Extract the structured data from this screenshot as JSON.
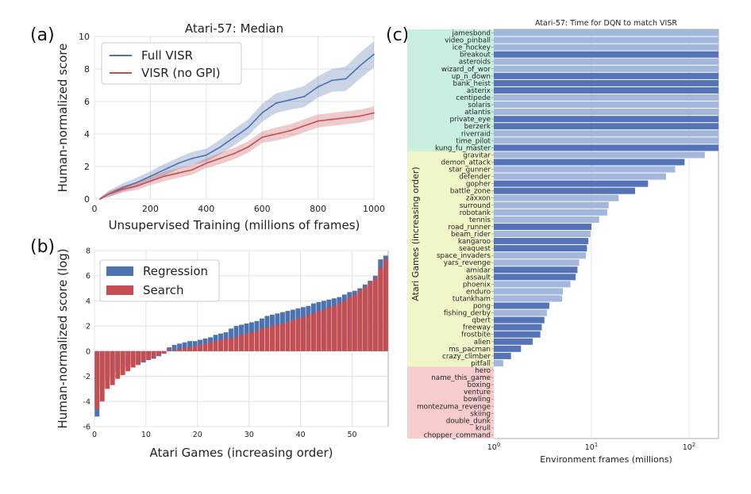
{
  "panels": {
    "a": "(a)",
    "b": "(b)",
    "c": "(c)"
  },
  "chart_data": [
    {
      "id": "a",
      "type": "line",
      "title": "Atari-57: Median",
      "xlabel": "Unsupervised Training (millions of frames)",
      "ylabel": "Human-normalized score",
      "xlim": [
        0,
        1000
      ],
      "ylim": [
        0,
        10
      ],
      "xticks": [
        0,
        200,
        400,
        600,
        800,
        1000
      ],
      "yticks": [
        0,
        2,
        4,
        6,
        8,
        10
      ],
      "grid": true,
      "legend_position": "top-left",
      "x": [
        20,
        50,
        100,
        150,
        200,
        250,
        300,
        350,
        400,
        450,
        500,
        550,
        600,
        650,
        700,
        750,
        800,
        850,
        900,
        950,
        1000
      ],
      "series": [
        {
          "name": "Full VISR",
          "color": "#4c72b0",
          "values": [
            0.0,
            0.3,
            0.7,
            1.0,
            1.4,
            1.8,
            2.2,
            2.5,
            2.7,
            3.2,
            3.8,
            4.4,
            5.3,
            5.9,
            6.1,
            6.3,
            6.9,
            7.3,
            7.4,
            8.2,
            8.9
          ],
          "band": [
            0.1,
            0.2,
            0.25,
            0.3,
            0.3,
            0.35,
            0.35,
            0.4,
            0.4,
            0.45,
            0.5,
            0.5,
            0.55,
            0.6,
            0.6,
            0.65,
            0.65,
            0.7,
            0.75,
            0.8,
            0.8
          ]
        },
        {
          "name": "VISR (no GPI)",
          "color": "#c44e52",
          "values": [
            0.0,
            0.3,
            0.6,
            0.8,
            1.1,
            1.4,
            1.6,
            1.8,
            2.2,
            2.5,
            2.8,
            3.2,
            3.8,
            4.0,
            4.2,
            4.5,
            4.8,
            4.9,
            5.0,
            5.1,
            5.3
          ],
          "band": [
            0.1,
            0.15,
            0.2,
            0.25,
            0.25,
            0.3,
            0.3,
            0.3,
            0.3,
            0.35,
            0.35,
            0.35,
            0.35,
            0.4,
            0.4,
            0.4,
            0.4,
            0.4,
            0.4,
            0.4,
            0.4
          ]
        }
      ]
    },
    {
      "id": "b",
      "type": "bar",
      "xlabel": "Atari Games (increasing order)",
      "ylabel": "Human-normalized score (log)",
      "xlim": [
        0,
        57
      ],
      "ylim": [
        -6,
        8
      ],
      "xticks": [
        0,
        10,
        20,
        30,
        40,
        50
      ],
      "yticks": [
        -6,
        -4,
        -2,
        0,
        2,
        4,
        6,
        8
      ],
      "grid": true,
      "legend_position": "top-left",
      "series": [
        {
          "name": "Regression",
          "color": "#4c72b0",
          "values": [
            -5.2,
            -3.0,
            -2.3,
            -2.0,
            -1.6,
            -1.4,
            -1.2,
            -1.1,
            -1.0,
            -0.9,
            -0.7,
            -0.6,
            -0.4,
            -0.2,
            0.3,
            0.5,
            0.6,
            0.7,
            0.8,
            0.8,
            0.9,
            1.0,
            1.1,
            1.3,
            1.4,
            1.5,
            1.8,
            2.0,
            2.1,
            2.2,
            2.3,
            2.4,
            2.6,
            2.8,
            2.9,
            3.0,
            3.1,
            3.2,
            3.3,
            3.4,
            3.5,
            3.6,
            3.8,
            3.9,
            4.0,
            4.1,
            4.2,
            4.3,
            4.5,
            4.7,
            4.8,
            5.0,
            5.3,
            5.6,
            6.0,
            7.3,
            7.6
          ]
        },
        {
          "name": "Search",
          "color": "#c44e52",
          "values": [
            -4.6,
            -4.0,
            -3.0,
            -2.7,
            -2.2,
            -1.9,
            -1.6,
            -1.3,
            -1.1,
            -0.8,
            -0.7,
            -0.5,
            -0.3,
            -0.2,
            0.1,
            0.1,
            0.2,
            0.3,
            0.3,
            0.4,
            0.5,
            0.6,
            0.7,
            0.8,
            0.9,
            1.0,
            1.0,
            1.1,
            1.3,
            1.4,
            1.5,
            1.6,
            1.8,
            1.9,
            2.0,
            2.1,
            2.2,
            2.3,
            2.5,
            2.6,
            2.7,
            2.9,
            3.0,
            3.2,
            3.3,
            3.5,
            3.6,
            3.8,
            4.0,
            4.3,
            4.5,
            4.8,
            5.1,
            5.5,
            5.8,
            6.6,
            7.3
          ]
        }
      ]
    },
    {
      "id": "c",
      "type": "bar",
      "orientation": "horizontal",
      "title": "Atari-57: Time for DQN to match VISR",
      "xlabel": "Environment frames (millions)",
      "ylabel": "Atari Games (increasing order)",
      "xscale": "log",
      "xlim": [
        1,
        200
      ],
      "xticks": [
        "10^0",
        "10^1",
        "10^2"
      ],
      "grid": true,
      "group_colors": {
        "top": "#c8efdf",
        "middle": "#f0f6c8",
        "bottom": "#f6cccc"
      },
      "categories": [
        "jamesbond",
        "video_pinball",
        "ice_hockey",
        "breakout",
        "asteroids",
        "wizard_of_wor",
        "up_n_down",
        "bank_heist",
        "asterix",
        "centipede",
        "solaris",
        "atlantis",
        "private_eye",
        "berzerk",
        "riverraid",
        "time_pilot",
        "kung_fu_master",
        "gravitar",
        "demon_attack",
        "star_gunner",
        "defender",
        "gopher",
        "battle_zone",
        "zaxxon",
        "surround",
        "robotank",
        "tennis",
        "road_runner",
        "beam_rider",
        "kangaroo",
        "seaquest",
        "space_invaders",
        "yars_revenge",
        "amidar",
        "assault",
        "phoenix",
        "enduro",
        "tutankham",
        "pong",
        "fishing_derby",
        "qbert",
        "freeway",
        "frostbite",
        "alien",
        "ms_pacman",
        "crazy_climber",
        "pitfall",
        "hero",
        "name_this_game",
        "boxing",
        "venture",
        "bowling",
        "montezuma_revenge",
        "skiing",
        "double_dunk",
        "krull",
        "chopper_command"
      ],
      "values": [
        200,
        200,
        200,
        200,
        200,
        200,
        200,
        200,
        200,
        200,
        200,
        200,
        200,
        200,
        200,
        200,
        200,
        145,
        90,
        72,
        58,
        38,
        28,
        19,
        15,
        14.5,
        12,
        10,
        9.8,
        9.3,
        9,
        8.8,
        7.5,
        7.2,
        6.9,
        6.1,
        5.1,
        5,
        3.7,
        3.5,
        3.3,
        3.1,
        3,
        2.5,
        1.9,
        1.5,
        1.25,
        0,
        0,
        0,
        0,
        0,
        0,
        0,
        0,
        0,
        0
      ],
      "bar_colors": [
        "light",
        "light",
        "light",
        "dark",
        "light",
        "light",
        "dark",
        "dark",
        "dark",
        "light",
        "light",
        "light",
        "dark",
        "dark",
        "light",
        "light",
        "dark",
        "light",
        "dark",
        "light",
        "light",
        "dark",
        "dark",
        "light",
        "light",
        "light",
        "light",
        "dark",
        "light",
        "dark",
        "dark",
        "light",
        "light",
        "dark",
        "dark",
        "light",
        "light",
        "light",
        "dark",
        "light",
        "dark",
        "dark",
        "dark",
        "dark",
        "dark",
        "dark",
        "light",
        "light",
        "light",
        "light",
        "light",
        "light",
        "light",
        "light",
        "light",
        "light",
        "light"
      ],
      "colors": {
        "dark": "#5574b8",
        "light": "#a3b6db"
      }
    }
  ]
}
